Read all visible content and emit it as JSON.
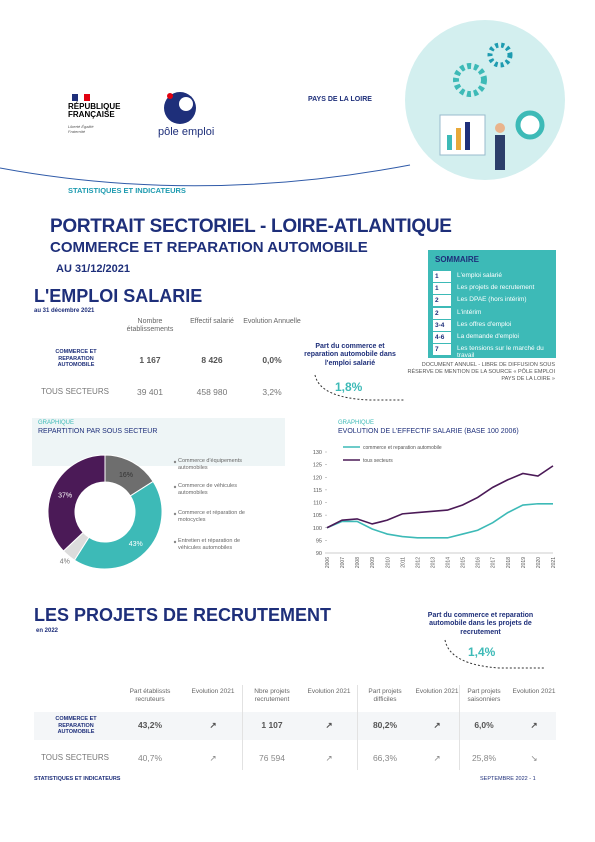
{
  "header": {
    "region": "PAYS DE LA LOIRE",
    "series": "STATISTIQUES ET INDICATEURS",
    "republic": "RÉPUBLIQUE FRANÇAISE",
    "motto": "Liberté Égalité Fraternité",
    "brand": "pôle emploi"
  },
  "title": {
    "main": "PORTRAIT SECTORIEL - LOIRE-ATLANTIQUE",
    "sector": "COMMERCE ET REPARATION AUTOMOBILE",
    "date": "AU  31/12/2021"
  },
  "summary": {
    "title": "SOMMAIRE",
    "items": [
      {
        "page": "1",
        "label": "L'emploi salarié"
      },
      {
        "page": "1",
        "label": "Les projets de recrutement"
      },
      {
        "page": "2",
        "label": "Les DPAE (hors intérim)"
      },
      {
        "page": "2",
        "label": "L'intérim"
      },
      {
        "page": "3-4",
        "label": "Les offres d'emploi"
      },
      {
        "page": "4-6",
        "label": "La demande d'emploi"
      },
      {
        "page": "7",
        "label": "Les tensions sur le marché du travail"
      }
    ]
  },
  "notice": "DOCUMENT ANNUEL - LIBRE DE DIFFUSION SOUS RÉSERVE DE MENTION DE LA SOURCE « PÔLE EMPLOI PAYS DE LA LOIRE »",
  "employment": {
    "title": "L'EMPLOI SALARIE",
    "subtitle": "au 31 décembre 2021",
    "columns": [
      "Nombre établissements",
      "Effectif salarié",
      "Evolution Annuelle"
    ],
    "rows": [
      [
        "COMMERCE ET REPARATION AUTOMOBILE",
        "1 167",
        "8 426",
        "0,0%"
      ],
      [
        "TOUS SECTEURS",
        "39 401",
        "458 980",
        "3,2%"
      ]
    ],
    "share_label": "Part du commerce et reparation automobile dans l'emploi salarié",
    "share": "1,8%"
  },
  "chart_data": [
    {
      "type": "donut",
      "label": "GRAPHIQUE",
      "title": "REPARTITION PAR SOUS SECTEUR",
      "categories": [
        "Commerce d'équipements automobiles",
        "Commerce de véhicules automobiles",
        "Commerce et réparation de motocycles",
        "Entretien et réparation de véhicules automobiles"
      ],
      "values": [
        16,
        43,
        4,
        37
      ],
      "value_labels": [
        "16%",
        "43%",
        "4%",
        "37%"
      ],
      "colors": [
        "#6e6e6e",
        "#3dbab7",
        "#dcdcdc",
        "#4b1a57"
      ]
    },
    {
      "type": "line",
      "label": "GRAPHIQUE",
      "title": "EVOLUTION DE L'EFFECTIF SALARIE  (BASE 100 2006)",
      "categories": [
        "2006",
        "2007",
        "2008",
        "2009",
        "2010",
        "2011",
        "2012",
        "2013",
        "2014",
        "2015",
        "2016",
        "2017",
        "2018",
        "2019",
        "2020",
        "2021"
      ],
      "series": [
        {
          "name": "commerce et reparation automobile",
          "color": "#3dbab7",
          "values": [
            100,
            102.5,
            102.5,
            99.5,
            97.5,
            96.5,
            96,
            96,
            96,
            97.5,
            99,
            102,
            106,
            109,
            109.5,
            109.5
          ]
        },
        {
          "name": "tous secteurs",
          "color": "#4b1a57",
          "values": [
            100,
            103,
            103.5,
            101.5,
            103,
            105.5,
            106,
            106.5,
            107,
            109,
            112,
            116,
            119,
            121.5,
            120.5,
            124.5
          ]
        }
      ],
      "ylim": [
        90,
        130
      ],
      "yticks": [
        90,
        95,
        100,
        105,
        110,
        115,
        120,
        125,
        130
      ]
    }
  ],
  "recruitment": {
    "title": "LES PROJETS DE RECRUTEMENT",
    "subtitle": "en 2022",
    "share_label": "Part du commerce et reparation automobile dans les projets de recrutement",
    "share": "1,4%",
    "columns": [
      "Part établissts recruteurs",
      "Evolution 2021",
      "Nbre projets recrutement",
      "Evolution 2021",
      "Part projets difficiles",
      "Evolution 2021",
      "Part projets saisonniers",
      "Evolution 2021"
    ],
    "rows": [
      [
        "COMMERCE ET REPARATION AUTOMOBILE",
        "43,2%",
        "↗",
        "1 107",
        "↗",
        "80,2%",
        "↗",
        "6,0%",
        "↗"
      ],
      [
        "TOUS SECTEURS",
        "40,7%",
        "↗",
        "76 594",
        "↗",
        "66,3%",
        "↗",
        "25,8%",
        "↘"
      ]
    ]
  },
  "footer": {
    "left": "STATISTIQUES ET INDICATEURS",
    "right": "SEPTEMBRE 2022 - 1"
  }
}
